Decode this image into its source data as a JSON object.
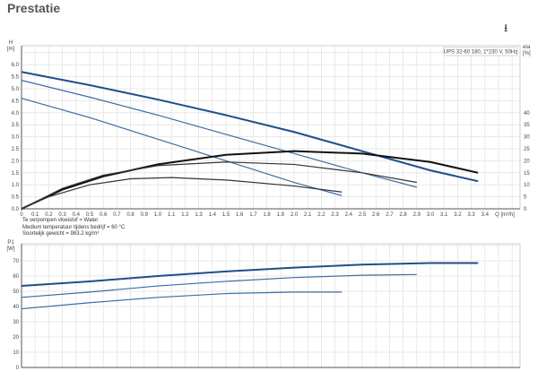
{
  "page_title": "Prestatie",
  "download_icon": "download-icon",
  "notes": [
    "Te verpompen vloeistof = Water",
    "Medium temperatuur tijdens bedrijf = 60 °C",
    "Soortelijk gewicht = 983.2 kg/m³"
  ],
  "chart_data": [
    {
      "type": "line",
      "legend": "UPS 32-60 180, 1*230 V, 50Hz",
      "legend_placement": "top-right",
      "ylabel": "H [m]",
      "ylabel2": "eta [%]",
      "xlabel": "Q [m³/h]",
      "xlim": [
        0,
        3.6
      ],
      "ylim": [
        0,
        6.5
      ],
      "y2lim": [
        0,
        65
      ],
      "grid": true,
      "xticks": [
        "0",
        "0.1",
        "0.2",
        "0.3",
        "0.4",
        "0.5",
        "0.6",
        "0.7",
        "0.8",
        "0.9",
        "1.0",
        "1.1",
        "1.2",
        "1.3",
        "1.4",
        "1.5",
        "1.6",
        "1.7",
        "1.8",
        "1.9",
        "2.0",
        "2.1",
        "2.2",
        "2.3",
        "2.4",
        "2.5",
        "2.6",
        "2.7",
        "2.8",
        "2.9",
        "3.0",
        "3.1",
        "3.2",
        "3.3",
        "3.4"
      ],
      "yticks": [
        "0.0",
        "0.5",
        "1.0",
        "1.5",
        "2.0",
        "2.5",
        "3.0",
        "3.5",
        "4.0",
        "4.5",
        "5.0",
        "5.5",
        "6.0"
      ],
      "y2ticks": [
        "0",
        "5",
        "10",
        "15",
        "20",
        "25",
        "30",
        "35",
        "40"
      ],
      "series": [
        {
          "axis": "H",
          "color": "#1f4e8c",
          "width": 2,
          "points": [
            [
              0,
              5.7
            ],
            [
              0.5,
              5.15
            ],
            [
              1.0,
              4.55
            ],
            [
              1.5,
              3.9
            ],
            [
              2.0,
              3.2
            ],
            [
              2.5,
              2.4
            ],
            [
              3.0,
              1.6
            ],
            [
              3.35,
              1.15
            ]
          ]
        },
        {
          "axis": "H",
          "color": "#3a6ea5",
          "width": 1.2,
          "points": [
            [
              0,
              5.35
            ],
            [
              0.5,
              4.65
            ],
            [
              1.0,
              3.9
            ],
            [
              1.5,
              3.1
            ],
            [
              2.0,
              2.3
            ],
            [
              2.5,
              1.5
            ],
            [
              2.9,
              0.9
            ]
          ]
        },
        {
          "axis": "H",
          "color": "#3a6ea5",
          "width": 1.2,
          "points": [
            [
              0,
              4.6
            ],
            [
              0.5,
              3.8
            ],
            [
              1.0,
              2.9
            ],
            [
              1.5,
              2.0
            ],
            [
              2.0,
              1.1
            ],
            [
              2.35,
              0.55
            ]
          ]
        },
        {
          "axis": "eta",
          "color": "#111111",
          "width": 2,
          "points": [
            [
              0,
              0
            ],
            [
              0.3,
              8
            ],
            [
              0.6,
              13.5
            ],
            [
              1.0,
              18.5
            ],
            [
              1.5,
              22.5
            ],
            [
              2.0,
              24
            ],
            [
              2.5,
              23
            ],
            [
              3.0,
              19.5
            ],
            [
              3.35,
              15
            ]
          ]
        },
        {
          "axis": "eta",
          "color": "#333333",
          "width": 1.2,
          "points": [
            [
              0,
              0
            ],
            [
              0.3,
              8.5
            ],
            [
              0.6,
              14
            ],
            [
              1.0,
              18
            ],
            [
              1.5,
              19.5
            ],
            [
              2.0,
              18.5
            ],
            [
              2.5,
              15
            ],
            [
              2.9,
              11
            ]
          ]
        },
        {
          "axis": "eta",
          "color": "#333333",
          "width": 1.2,
          "points": [
            [
              0,
              0
            ],
            [
              0.2,
              5
            ],
            [
              0.5,
              10
            ],
            [
              0.8,
              12.5
            ],
            [
              1.1,
              13
            ],
            [
              1.5,
              12
            ],
            [
              2.0,
              9.5
            ],
            [
              2.35,
              7
            ]
          ]
        }
      ]
    },
    {
      "type": "line",
      "ylabel": "P1 [W]",
      "xlim": [
        0,
        3.6
      ],
      "ylim": [
        0,
        80
      ],
      "grid": true,
      "yticks": [
        "0",
        "10",
        "20",
        "30",
        "40",
        "50",
        "60",
        "70"
      ],
      "series": [
        {
          "color": "#1f4e8c",
          "width": 2,
          "points": [
            [
              0,
              53.5
            ],
            [
              0.5,
              56.5
            ],
            [
              1.0,
              60
            ],
            [
              1.5,
              63
            ],
            [
              2.0,
              65.5
            ],
            [
              2.5,
              67.5
            ],
            [
              3.0,
              68.5
            ],
            [
              3.35,
              68.5
            ]
          ]
        },
        {
          "color": "#3a6ea5",
          "width": 1.2,
          "points": [
            [
              0,
              46
            ],
            [
              0.5,
              49.5
            ],
            [
              1.0,
              53.5
            ],
            [
              1.5,
              56.5
            ],
            [
              2.0,
              59
            ],
            [
              2.5,
              60.5
            ],
            [
              2.9,
              61
            ]
          ]
        },
        {
          "color": "#3a6ea5",
          "width": 1.2,
          "points": [
            [
              0,
              38.5
            ],
            [
              0.5,
              42.5
            ],
            [
              1.0,
              46
            ],
            [
              1.5,
              48.5
            ],
            [
              2.0,
              49.5
            ],
            [
              2.35,
              49.5
            ]
          ]
        }
      ]
    }
  ]
}
